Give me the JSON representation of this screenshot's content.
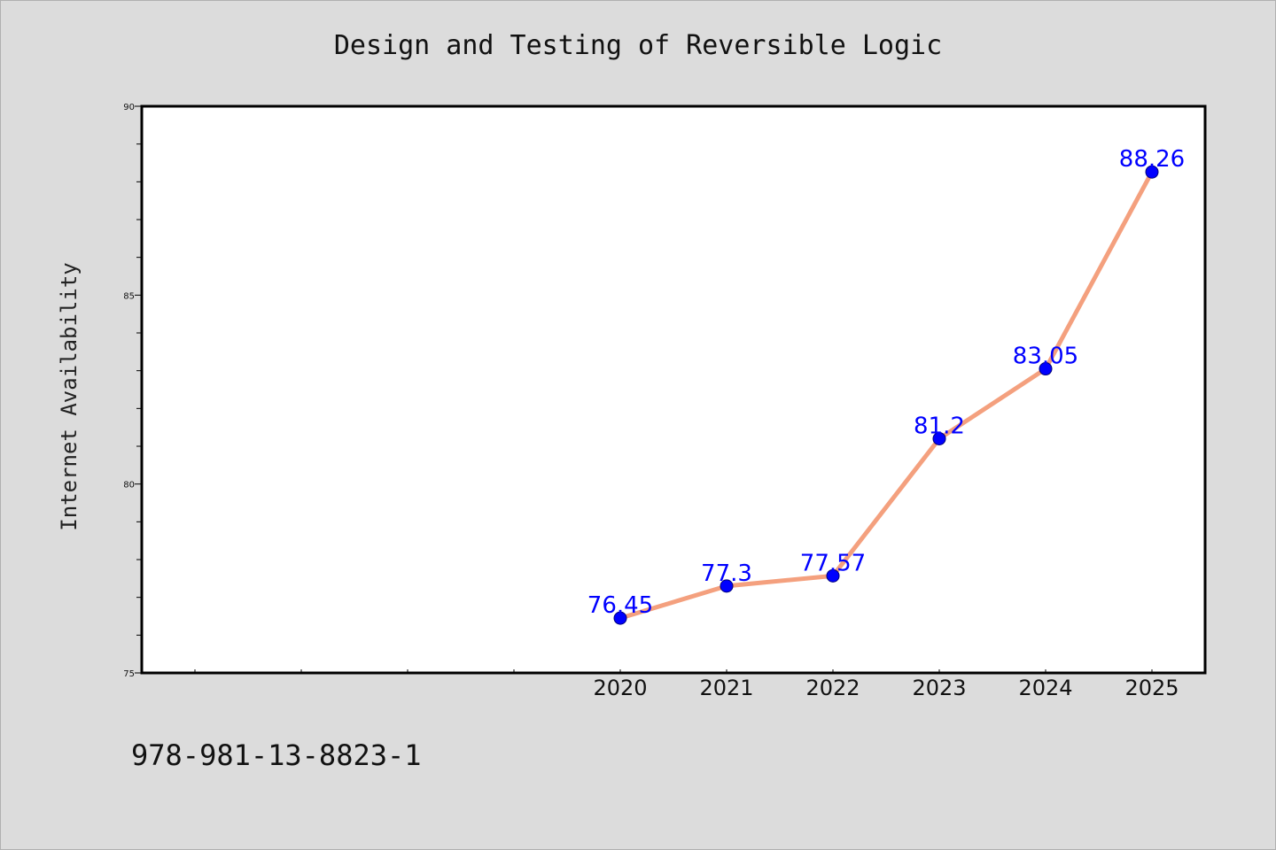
{
  "colors": {
    "background": "#dcdcdc",
    "plot_background": "#ffffff",
    "line": "#f4a07e",
    "marker": "#0000ff",
    "data_label": "#0000ff"
  },
  "footer": {
    "isbn": "978-981-13-8823-1"
  },
  "chart_data": {
    "type": "line",
    "title": "Design and Testing of Reversible Logic",
    "xlabel": "",
    "ylabel": "Internet Availability",
    "x": [
      "2020",
      "2021",
      "2022",
      "2023",
      "2024",
      "2025"
    ],
    "series": [
      {
        "values": [
          76.45,
          77.3,
          77.57,
          81.2,
          83.05,
          88.26
        ]
      }
    ],
    "data_labels": [
      "76.45",
      "77.3",
      "77.57",
      "81.2",
      "83.05",
      "88.26"
    ],
    "ylim": [
      75,
      90
    ],
    "y_ticks": [
      75,
      80,
      85,
      90
    ],
    "x_slots": 10,
    "grid": false,
    "legend": "none"
  }
}
